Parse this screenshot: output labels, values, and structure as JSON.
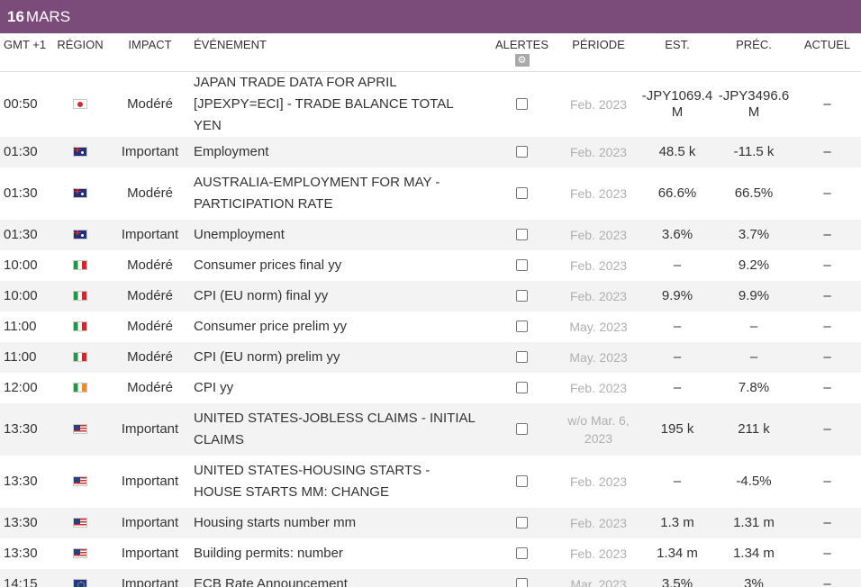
{
  "date": {
    "day": "16",
    "month": "MARS"
  },
  "headers": {
    "gmt": "GMT +1",
    "region": "RÉGION",
    "impact": "IMPACT",
    "event": "ÉVÉNEMENT",
    "alerts": "ALERTES",
    "period": "PÉRIODE",
    "est": "EST.",
    "prev": "PRÉC.",
    "actual": "ACTUEL"
  },
  "alerts_settings_icon": "gear-icon",
  "rows": [
    {
      "time": "00:50",
      "flag": "jp",
      "impact": "Modéré",
      "event": "JAPAN TRADE DATA FOR APRIL [JPEXPY=ECI] - TRADE BALANCE TOTAL YEN",
      "period": "Feb. 2023",
      "est": "-JPY1069.4 M",
      "prev": "-JPY3496.6 M",
      "actual": "–",
      "h": 61
    },
    {
      "time": "01:30",
      "flag": "au",
      "impact": "Important",
      "event": "Employment",
      "period": "Feb. 2023",
      "est": "48.5 k",
      "prev": "-11.5 k",
      "actual": "–",
      "h": 34
    },
    {
      "time": "01:30",
      "flag": "au",
      "impact": "Modéré",
      "event": "AUSTRALIA-EMPLOYMENT FOR MAY - PARTICIPATION RATE",
      "period": "Feb. 2023",
      "est": "66.6%",
      "prev": "66.5%",
      "actual": "–",
      "h": 58
    },
    {
      "time": "01:30",
      "flag": "au",
      "impact": "Important",
      "event": "Unemployment",
      "period": "Feb. 2023",
      "est": "3.6%",
      "prev": "3.7%",
      "actual": "–",
      "h": 34
    },
    {
      "time": "10:00",
      "flag": "it",
      "impact": "Modéré",
      "event": "Consumer prices final yy",
      "period": "Feb. 2023",
      "est": "–",
      "prev": "9.2%",
      "actual": "–",
      "h": 34
    },
    {
      "time": "10:00",
      "flag": "it",
      "impact": "Modéré",
      "event": "CPI (EU norm) final yy",
      "period": "Feb. 2023",
      "est": "9.9%",
      "prev": "9.9%",
      "actual": "–",
      "h": 34
    },
    {
      "time": "11:00",
      "flag": "it",
      "impact": "Modéré",
      "event": "Consumer price prelim yy",
      "period": "May. 2023",
      "est": "–",
      "prev": "–",
      "actual": "–",
      "h": 34
    },
    {
      "time": "11:00",
      "flag": "it",
      "impact": "Modéré",
      "event": "CPI (EU norm) prelim yy",
      "period": "May. 2023",
      "est": "–",
      "prev": "–",
      "actual": "–",
      "h": 34
    },
    {
      "time": "12:00",
      "flag": "ie",
      "impact": "Modéré",
      "event": "CPI yy",
      "period": "Feb. 2023",
      "est": "–",
      "prev": "7.8%",
      "actual": "–",
      "h": 34
    },
    {
      "time": "13:30",
      "flag": "us",
      "impact": "Important",
      "event": "UNITED STATES-JOBLESS CLAIMS - INITIAL CLAIMS",
      "period": "w/o Mar. 6, 2023",
      "est": "195 k",
      "prev": "211 k",
      "actual": "–",
      "h": 58
    },
    {
      "time": "13:30",
      "flag": "us",
      "impact": "Important",
      "event": "UNITED STATES-HOUSING STARTS - HOUSE STARTS MM: CHANGE",
      "period": "Feb. 2023",
      "est": "–",
      "prev": "-4.5%",
      "actual": "–",
      "h": 58
    },
    {
      "time": "13:30",
      "flag": "us",
      "impact": "Important",
      "event": "Housing starts number mm",
      "period": "Feb. 2023",
      "est": "1.3 m",
      "prev": "1.31 m",
      "actual": "–",
      "h": 34
    },
    {
      "time": "13:30",
      "flag": "us",
      "impact": "Important",
      "event": "Building permits: number",
      "period": "Feb. 2023",
      "est": "1.34 m",
      "prev": "1.34 m",
      "actual": "–",
      "h": 34
    },
    {
      "time": "14:15",
      "flag": "eu",
      "impact": "Important",
      "event": "ECB Rate Announcement",
      "period": "Mar. 2023",
      "est": "3.5%",
      "prev": "3%",
      "actual": "–",
      "h": 34
    }
  ]
}
